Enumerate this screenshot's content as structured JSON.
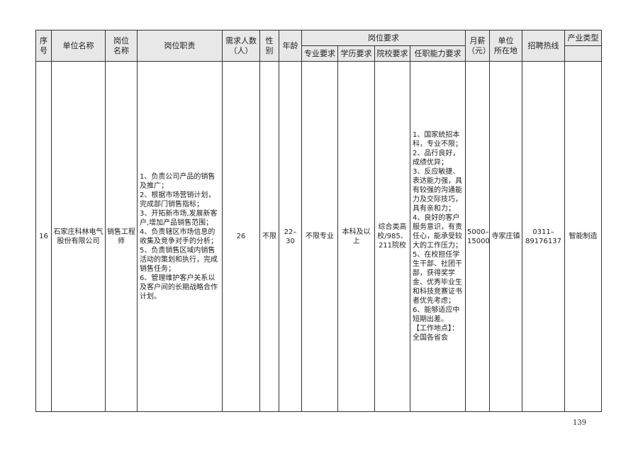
{
  "headers": {
    "seq": "序号",
    "company": "单位名称",
    "position": "岗位\n名称",
    "duties": "岗位职责",
    "count": "需求人数\n（人）",
    "gender": "性\n别",
    "age": "年龄",
    "requirements": "岗位要求",
    "major": "专业要求",
    "education": "学历要求",
    "school": "院校要求",
    "ability": "任职能力要求",
    "salary": "月薪\n（元）",
    "location": "单位\n所在地",
    "hotline": "招聘热线",
    "industry": "产业类型"
  },
  "row": {
    "seq": "16",
    "company": "石家庄科林电气股份有限公司",
    "position": "销售工程师",
    "duties": "1、负责公司产品的销售及推广；\n2、根据市场营销计划，完成部门销售指标；\n3、开拓新市场,发展新客户,增加产品销售范围；\n4、负责辖区市场信息的收集及竞争对手的分析；\n5、负责销售区域内销售活动的策划和执行，完成销售任务；\n6、管理维护客户关系以及客户间的长期战略合作计划。",
    "count": "26",
    "gender": "不限",
    "age": "22–\n30",
    "major": "不限专业",
    "education": "本科及以上",
    "school": "综合类高校/985、211院校",
    "ability": "1、国家统招本科，专业不限；\n2、品行良好，成绩优异；\n3、反应敏捷、表达能力强，具有较强的沟通能力及交际技巧，具有亲和力；\n4、良好的客户服务意识，有责任心，能承受较大的工作压力；\n5、在校担任学生干部、社团干部，获得奖学金、优秀毕业生和科技竞赛证书者优先考虑；\n6、能够适应中短期出差。\n【工作地点】：全国各省会",
    "salary": "5000–\n15000",
    "location": "寺家庄镇",
    "hotline": "0311–\n89176137",
    "industry": "智能制造"
  },
  "page_number": "139"
}
